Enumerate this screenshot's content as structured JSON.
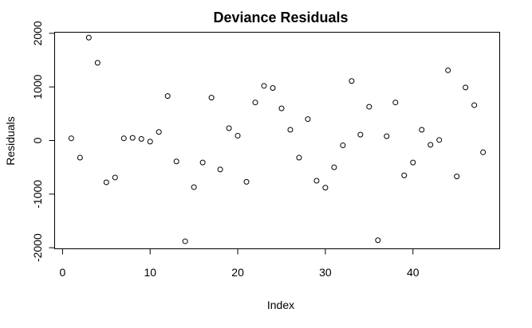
{
  "chart_data": {
    "type": "scatter",
    "title": "Deviance Residuals",
    "xlabel": "Index",
    "ylabel": "Residuals",
    "xlim": [
      -0.9,
      49.9
    ],
    "ylim": [
      -2020,
      2020
    ],
    "x_ticks": [
      0,
      10,
      20,
      30,
      40
    ],
    "x_tick_labels": [
      "0",
      "10",
      "20",
      "30",
      "40"
    ],
    "y_ticks": [
      -2000,
      -1000,
      0,
      1000,
      2000
    ],
    "y_tick_labels": [
      "-2000",
      "-1000",
      "0",
      "1000",
      "2000"
    ],
    "grid": false,
    "legend": "none",
    "marker": "open-circle",
    "marker_color": "#000000",
    "series": [
      {
        "x": [
          1,
          2,
          3,
          4,
          5,
          6,
          7,
          8,
          9,
          10,
          11,
          12,
          13,
          14,
          15,
          16,
          17,
          18,
          19,
          20,
          21,
          22,
          23,
          24,
          25,
          26,
          27,
          28,
          29,
          30,
          31,
          32,
          33,
          34,
          35,
          36,
          37,
          38,
          39,
          40,
          41,
          42,
          43,
          44,
          45,
          46,
          47,
          48
        ],
        "values": [
          40,
          -320,
          1920,
          1450,
          -780,
          -690,
          40,
          50,
          30,
          -20,
          160,
          830,
          -390,
          -1880,
          -870,
          -410,
          800,
          -540,
          230,
          90,
          -770,
          710,
          1020,
          980,
          600,
          200,
          -320,
          400,
          -750,
          -880,
          -500,
          -90,
          1110,
          110,
          630,
          -1860,
          80,
          710,
          -650,
          -410,
          200,
          -80,
          10,
          1310,
          -670,
          990,
          660,
          -220
        ]
      }
    ]
  }
}
